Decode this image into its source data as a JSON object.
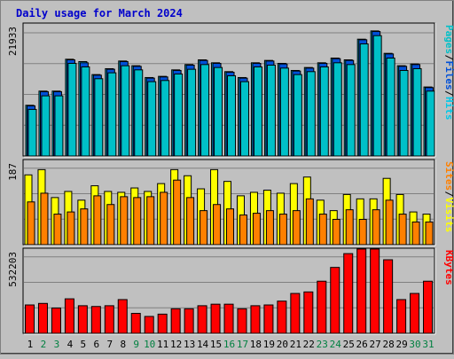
{
  "title": "Daily usage for March 2024",
  "colors": {
    "background": "#c0c0c0",
    "panel": "#c0c0c0",
    "grid": "#808080",
    "hits": "#00c8e8",
    "files": "#0050d8",
    "pages": "#00c0c8",
    "visits": "#ffff00",
    "sites": "#ff8000",
    "kbytes": "#ff0000",
    "weekday_label": "#000000",
    "weekend_label": "#008040",
    "title": "#0000cc"
  },
  "chart_data": [
    {
      "type": "bar",
      "panel": "top",
      "y_label": "21933",
      "ylim": [
        0,
        21933
      ],
      "legend": [
        "Pages",
        "Files",
        "Hits"
      ],
      "categories": [
        "1",
        "2",
        "3",
        "4",
        "5",
        "6",
        "7",
        "8",
        "9",
        "10",
        "11",
        "12",
        "13",
        "14",
        "15",
        "16",
        "17",
        "18",
        "19",
        "20",
        "21",
        "22",
        "23",
        "24",
        "25",
        "26",
        "27",
        "28",
        "29",
        "30",
        "31"
      ],
      "series": [
        {
          "name": "Hits",
          "values": [
            8600,
            11000,
            11000,
            16400,
            16000,
            13800,
            14800,
            16100,
            15300,
            13300,
            13500,
            14600,
            15500,
            16300,
            15800,
            14300,
            13300,
            15800,
            16200,
            15700,
            14500,
            15000,
            15800,
            16600,
            16300,
            19800,
            21200,
            17400,
            15300,
            15600,
            11700
          ]
        },
        {
          "name": "Files",
          "values": [
            8500,
            10900,
            10900,
            16300,
            15800,
            13700,
            14700,
            16000,
            15200,
            13200,
            13400,
            14500,
            15400,
            16200,
            15700,
            14200,
            13200,
            15700,
            16100,
            15600,
            14400,
            14900,
            15700,
            16500,
            16200,
            19700,
            21100,
            17300,
            15200,
            15500,
            11600
          ]
        },
        {
          "name": "Pages",
          "values": [
            7900,
            10200,
            10200,
            15700,
            15100,
            13100,
            14100,
            15300,
            14600,
            12600,
            12800,
            13900,
            14700,
            15500,
            15000,
            13600,
            12600,
            15100,
            15400,
            14900,
            13800,
            14300,
            15100,
            15800,
            15500,
            19000,
            20400,
            16600,
            14500,
            14800,
            11000
          ]
        }
      ]
    },
    {
      "type": "bar",
      "panel": "middle",
      "y_label": "187",
      "ylim": [
        0,
        187
      ],
      "legend": [
        "Sites",
        "Visits"
      ],
      "categories": [
        "1",
        "2",
        "3",
        "4",
        "5",
        "6",
        "7",
        "8",
        "9",
        "10",
        "11",
        "12",
        "13",
        "14",
        "15",
        "16",
        "17",
        "18",
        "19",
        "20",
        "21",
        "22",
        "23",
        "24",
        "25",
        "26",
        "27",
        "28",
        "29",
        "30",
        "31"
      ],
      "series": [
        {
          "name": "Visits",
          "values": [
            160,
            172,
            108,
            122,
            102,
            135,
            122,
            120,
            130,
            122,
            140,
            172,
            158,
            128,
            172,
            145,
            112,
            120,
            125,
            118,
            140,
            155,
            102,
            78,
            115,
            105,
            105,
            152,
            115,
            75,
            70
          ]
        },
        {
          "name": "Sites",
          "values": [
            98,
            118,
            70,
            75,
            82,
            112,
            92,
            110,
            108,
            110,
            120,
            148,
            108,
            78,
            92,
            82,
            68,
            72,
            78,
            70,
            78,
            105,
            70,
            58,
            80,
            58,
            80,
            102,
            70,
            52,
            52
          ]
        }
      ]
    },
    {
      "type": "bar",
      "panel": "bottom",
      "y_label": "532203",
      "ylim": [
        0,
        532203
      ],
      "legend": [
        "KBytes"
      ],
      "categories": [
        "1",
        "2",
        "3",
        "4",
        "5",
        "6",
        "7",
        "8",
        "9",
        "10",
        "11",
        "12",
        "13",
        "14",
        "15",
        "16",
        "17",
        "18",
        "19",
        "20",
        "21",
        "22",
        "23",
        "24",
        "25",
        "26",
        "27",
        "28",
        "29",
        "30",
        "31"
      ],
      "series": [
        {
          "name": "KBytes",
          "values": [
            185000,
            195000,
            165000,
            225000,
            180000,
            175000,
            180000,
            220000,
            130000,
            110000,
            125000,
            160000,
            160000,
            180000,
            190000,
            190000,
            160000,
            180000,
            185000,
            210000,
            260000,
            270000,
            340000,
            430000,
            520000,
            550000,
            550000,
            480000,
            220000,
            260000,
            340000
          ]
        }
      ]
    }
  ],
  "x_labels": [
    {
      "text": "1",
      "weekend": false
    },
    {
      "text": "2",
      "weekend": true
    },
    {
      "text": "3",
      "weekend": true
    },
    {
      "text": "4",
      "weekend": false
    },
    {
      "text": "5",
      "weekend": false
    },
    {
      "text": "6",
      "weekend": false
    },
    {
      "text": "7",
      "weekend": false
    },
    {
      "text": "8",
      "weekend": false
    },
    {
      "text": "9",
      "weekend": true
    },
    {
      "text": "10",
      "weekend": true
    },
    {
      "text": "11",
      "weekend": false
    },
    {
      "text": "12",
      "weekend": false
    },
    {
      "text": "13",
      "weekend": false
    },
    {
      "text": "14",
      "weekend": false
    },
    {
      "text": "15",
      "weekend": false
    },
    {
      "text": "16",
      "weekend": true
    },
    {
      "text": "17",
      "weekend": true
    },
    {
      "text": "18",
      "weekend": false
    },
    {
      "text": "19",
      "weekend": false
    },
    {
      "text": "20",
      "weekend": false
    },
    {
      "text": "21",
      "weekend": false
    },
    {
      "text": "22",
      "weekend": false
    },
    {
      "text": "23",
      "weekend": true
    },
    {
      "text": "24",
      "weekend": true
    },
    {
      "text": "25",
      "weekend": false
    },
    {
      "text": "26",
      "weekend": false
    },
    {
      "text": "27",
      "weekend": false
    },
    {
      "text": "28",
      "weekend": false
    },
    {
      "text": "29",
      "weekend": false
    },
    {
      "text": "30",
      "weekend": true
    },
    {
      "text": "31",
      "weekend": true
    }
  ]
}
